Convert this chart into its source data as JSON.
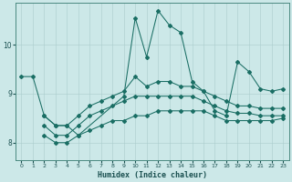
{
  "title": "",
  "xlabel": "Humidex (Indice chaleur)",
  "ylabel": "",
  "bg_color": "#cce8e8",
  "grid_color": "#aacccc",
  "line_color": "#1a6e64",
  "figsize": [
    3.2,
    2.0
  ],
  "dpi": 100,
  "xlim": [
    -0.5,
    23.5
  ],
  "ylim": [
    7.65,
    10.85
  ],
  "yticks": [
    8,
    9,
    10
  ],
  "xticks": [
    0,
    1,
    2,
    3,
    4,
    5,
    6,
    7,
    8,
    9,
    10,
    11,
    12,
    13,
    14,
    15,
    16,
    17,
    18,
    19,
    20,
    21,
    22,
    23
  ],
  "series": [
    {
      "name": "line1_volatile",
      "x": [
        0,
        1,
        2,
        3,
        4,
        5,
        9,
        10,
        11,
        12,
        13,
        14,
        15,
        16,
        17,
        18,
        19,
        20,
        21,
        22,
        23
      ],
      "y": [
        9.35,
        9.35,
        8.55,
        8.35,
        8.35,
        8.15,
        8.95,
        10.55,
        9.75,
        10.7,
        10.4,
        10.25,
        9.25,
        9.05,
        8.65,
        8.55,
        9.65,
        9.45,
        9.1,
        9.05,
        9.1
      ]
    },
    {
      "name": "line2_upper",
      "x": [
        2,
        3,
        4,
        5,
        6,
        7,
        8,
        9,
        10,
        11,
        12,
        13,
        14,
        15,
        16,
        17,
        18,
        19,
        20,
        21,
        22,
        23
      ],
      "y": [
        8.55,
        8.35,
        8.35,
        8.55,
        8.75,
        8.85,
        8.95,
        9.05,
        9.35,
        9.15,
        9.25,
        9.25,
        9.15,
        9.15,
        9.05,
        8.95,
        8.85,
        8.75,
        8.75,
        8.7,
        8.7,
        8.7
      ]
    },
    {
      "name": "line3_mid",
      "x": [
        2,
        3,
        4,
        5,
        6,
        7,
        8,
        9,
        10,
        11,
        12,
        13,
        14,
        15,
        16,
        17,
        18,
        19,
        20,
        21,
        22,
        23
      ],
      "y": [
        8.35,
        8.15,
        8.15,
        8.35,
        8.55,
        8.65,
        8.75,
        8.85,
        8.95,
        8.95,
        8.95,
        8.95,
        8.95,
        8.95,
        8.85,
        8.75,
        8.65,
        8.6,
        8.6,
        8.55,
        8.55,
        8.55
      ]
    },
    {
      "name": "line4_bottom",
      "x": [
        2,
        3,
        4,
        5,
        6,
        7,
        8,
        9,
        10,
        11,
        12,
        13,
        14,
        15,
        16,
        17,
        18,
        19,
        20,
        21,
        22,
        23
      ],
      "y": [
        8.15,
        8.0,
        8.0,
        8.15,
        8.25,
        8.35,
        8.45,
        8.45,
        8.55,
        8.55,
        8.65,
        8.65,
        8.65,
        8.65,
        8.65,
        8.55,
        8.45,
        8.45,
        8.45,
        8.45,
        8.45,
        8.5
      ]
    }
  ]
}
